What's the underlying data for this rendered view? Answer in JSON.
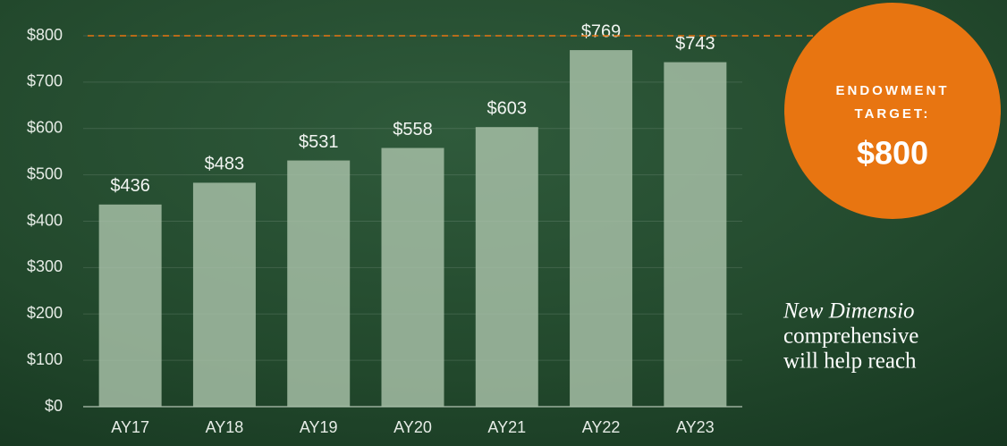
{
  "chart_data": {
    "type": "bar",
    "categories": [
      "AY17",
      "AY18",
      "AY19",
      "AY20",
      "AY21",
      "AY22",
      "AY23"
    ],
    "values": [
      436,
      483,
      531,
      558,
      603,
      769,
      743
    ],
    "value_labels": [
      "$436",
      "$483",
      "$531",
      "$558",
      "$603",
      "$769",
      "$743"
    ],
    "color": "#a9c2aa",
    "ylim": [
      0,
      800
    ],
    "yticks": [
      {
        "value": 0,
        "label": "$0"
      },
      {
        "value": 100,
        "label": "$100"
      },
      {
        "value": 200,
        "label": "$200"
      },
      {
        "value": 300,
        "label": "$300"
      },
      {
        "value": 400,
        "label": "$400"
      },
      {
        "value": 500,
        "label": "$500"
      },
      {
        "value": 600,
        "label": "$600"
      },
      {
        "value": 700,
        "label": "$700"
      },
      {
        "value": 800,
        "label": "$800"
      }
    ],
    "grid": true,
    "target": {
      "lines": [
        "ENDOWMENT",
        "TARGET:"
      ],
      "value": 800,
      "value_label": "$800",
      "color": "#e87511"
    },
    "note": {
      "lines": [
        "New Dimensio",
        "comprehensive",
        "will help reach"
      ]
    }
  }
}
